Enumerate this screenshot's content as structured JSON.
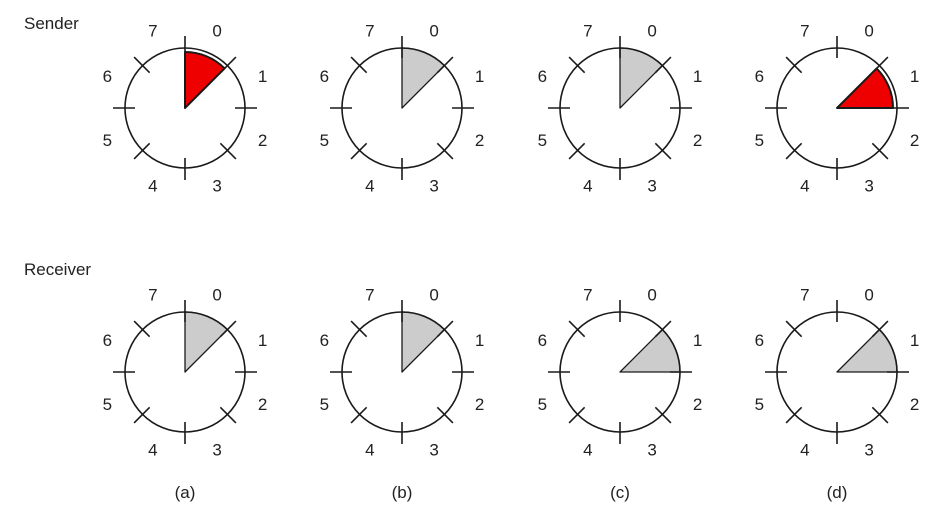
{
  "sender_label": "Sender",
  "receiver_label": "Receiver",
  "sector_numbers": [
    "0",
    "1",
    "2",
    "3",
    "4",
    "5",
    "6",
    "7"
  ],
  "colors": {
    "stroke": "#1a1a1a",
    "window_outstanding": "#ee0000",
    "window_idle": "#cccccc"
  },
  "panels": [
    {
      "caption": "(a)",
      "sender": {
        "window_sector": 0,
        "fill": "red",
        "outstanding": true
      },
      "receiver": {
        "window_sector": 0,
        "fill": "gray"
      }
    },
    {
      "caption": "(b)",
      "sender": {
        "window_sector": 0,
        "fill": "gray",
        "outstanding": false
      },
      "receiver": {
        "window_sector": 0,
        "fill": "gray"
      }
    },
    {
      "caption": "(c)",
      "sender": {
        "window_sector": 0,
        "fill": "gray",
        "outstanding": false
      },
      "receiver": {
        "window_sector": 1,
        "fill": "gray"
      }
    },
    {
      "caption": "(d)",
      "sender": {
        "window_sector": 1,
        "fill": "red",
        "outstanding": true
      },
      "receiver": {
        "window_sector": 1,
        "fill": "gray"
      }
    }
  ]
}
